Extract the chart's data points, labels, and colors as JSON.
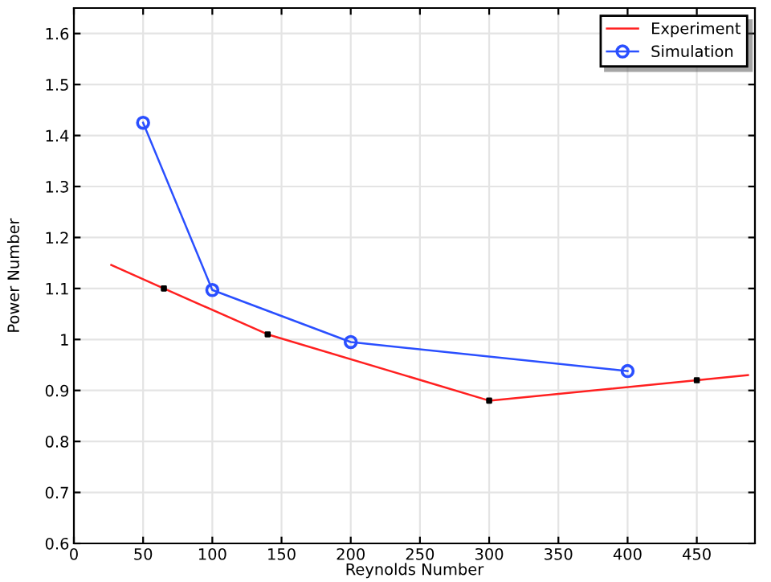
{
  "chart_data": {
    "type": "line",
    "xlabel": "Reynolds Number",
    "ylabel": "Power Number",
    "xlim": [
      0,
      492
    ],
    "xticks": [
      0,
      50,
      100,
      150,
      200,
      250,
      300,
      350,
      400,
      450
    ],
    "ylim": [
      0.6,
      1.65
    ],
    "yticks": [
      0.6,
      0.7,
      0.8,
      0.9,
      1,
      1.1,
      1.2,
      1.3,
      1.4,
      1.5,
      1.6
    ],
    "grid": true,
    "legend": "top right",
    "series": [
      {
        "name": "Experiment",
        "color": "#ff2020",
        "marker": "none",
        "x": [
          27,
          65,
          140,
          300,
          450,
          487
        ],
        "values": [
          1.146,
          1.1,
          1.01,
          0.88,
          0.92,
          0.93
        ]
      },
      {
        "type": "scatter",
        "color": "#000000",
        "marker": "square",
        "x": [
          65,
          140,
          300,
          450
        ],
        "values": [
          1.1,
          1.01,
          0.88,
          0.92
        ]
      },
      {
        "name": "Simulation",
        "color": "#2a4fff",
        "marker": "circle",
        "x": [
          50,
          100,
          200,
          400
        ],
        "values": [
          1.425,
          1.097,
          0.995,
          0.938
        ]
      }
    ]
  }
}
